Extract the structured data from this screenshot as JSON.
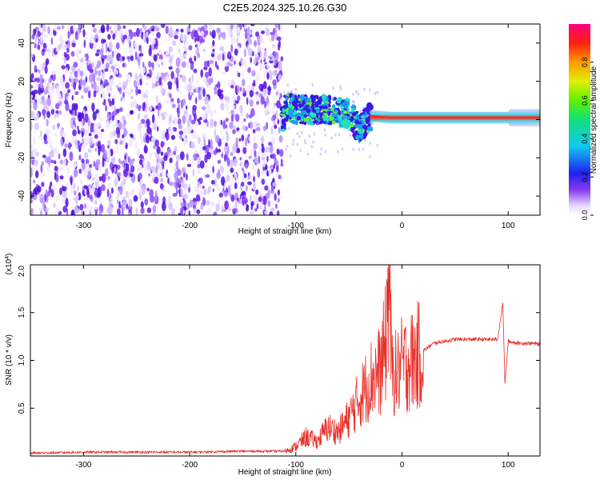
{
  "title": "C2E5.2024.325.10.26.G30",
  "colors": {
    "snr_line": "#e8302a",
    "axes": "#000000",
    "signal_core": "#ff2a1a",
    "signal_mid": "#25d0e0",
    "noise": "#6a1ce8"
  },
  "chart_data": [
    {
      "type": "heatmap",
      "title": "C2E5.2024.325.10.26.G30",
      "xlabel": "Height of straight line (km)",
      "ylabel": "Frequency (Hz)",
      "xlim": [
        -350,
        130
      ],
      "ylim": [
        -50,
        50
      ],
      "xticks": [
        -300,
        -200,
        -100,
        0,
        100
      ],
      "yticks": [
        -40,
        -20,
        0,
        20,
        40
      ],
      "noise_region_x": [
        -350,
        -113
      ],
      "tracked_signal": {
        "description_x": [
          -113,
          130
        ],
        "center_frequency_hz": [
          {
            "x": -110,
            "f": 6
          },
          {
            "x": -90,
            "f": 5
          },
          {
            "x": -70,
            "f": 5
          },
          {
            "x": -50,
            "f": 3
          },
          {
            "x": -40,
            "f": -5
          },
          {
            "x": -30,
            "f": 2
          },
          {
            "x": -10,
            "f": 1
          },
          {
            "x": 10,
            "f": 1
          },
          {
            "x": 50,
            "f": 1
          },
          {
            "x": 90,
            "f": 1
          },
          {
            "x": 130,
            "f": 1
          }
        ]
      },
      "colorbar": {
        "label": "Normalized spectral amplitude",
        "range": [
          0,
          1
        ],
        "ticks": [
          "0.0",
          "0.2",
          "0.4",
          "0.6",
          "0.8"
        ],
        "tick_values": [
          0.0,
          0.2,
          0.4,
          0.6,
          0.8
        ]
      }
    },
    {
      "type": "line",
      "xlabel": "Height of straight line (km)",
      "ylabel": "SNR (10 * v/v)",
      "y_multiplier_label": "(x10",
      "y_multiplier_exp": "4",
      "xlim": [
        -350,
        130
      ],
      "ylim": [
        0,
        2.0
      ],
      "xticks": [
        -300,
        -200,
        -100,
        0,
        100
      ],
      "yticks": [
        0.5,
        1.0,
        1.5,
        2.0
      ],
      "ytick_labels": [
        "0.5",
        "1.0",
        "1.5",
        "2.0"
      ],
      "series": [
        {
          "x": [
            -350,
            -300,
            -250,
            -200,
            -150,
            -110,
            -100,
            -90,
            -80,
            -70,
            -60,
            -50,
            -40,
            -30,
            -20,
            -15,
            -12,
            -10,
            -5,
            0,
            10,
            20,
            30,
            40,
            50,
            60,
            70,
            80,
            90,
            95,
            97,
            100,
            110,
            120,
            130
          ],
          "values": [
            0.03,
            0.04,
            0.04,
            0.04,
            0.05,
            0.05,
            0.1,
            0.2,
            0.15,
            0.3,
            0.25,
            0.4,
            0.6,
            0.8,
            0.9,
            1.2,
            2.0,
            0.9,
            0.85,
            0.95,
            1.0,
            1.1,
            1.18,
            1.2,
            1.22,
            1.22,
            1.22,
            1.22,
            1.22,
            1.6,
            0.75,
            1.2,
            1.18,
            1.18,
            1.17
          ]
        }
      ]
    }
  ]
}
